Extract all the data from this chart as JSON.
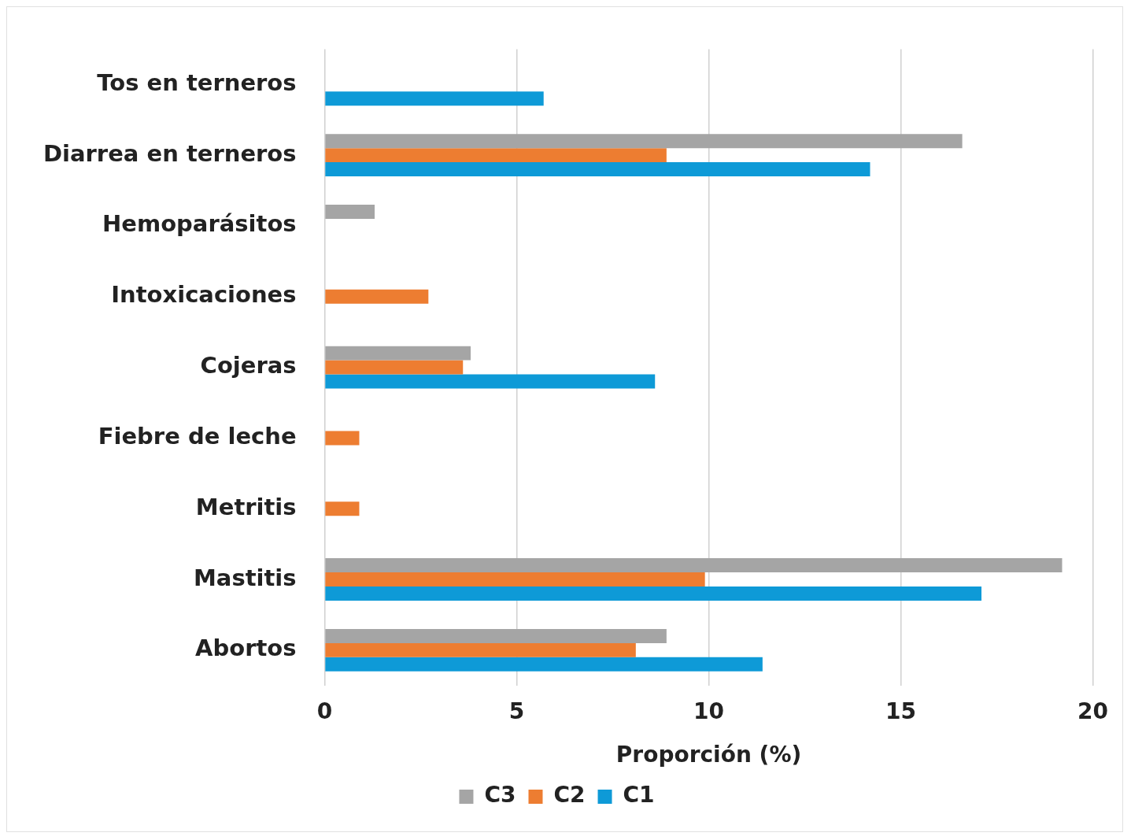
{
  "chart_data": {
    "type": "bar",
    "orientation": "horizontal",
    "xlabel": "Proporción (%)",
    "categories": [
      "Tos en terneros",
      "Diarrea en terneros",
      "Hemoparásitos",
      "Intoxicaciones",
      "Cojeras",
      "Fiebre de leche",
      "Metritis",
      "Mastitis",
      "Abortos"
    ],
    "series": [
      {
        "name": "C3",
        "color": "#a5a5a5",
        "values": [
          null,
          16.6,
          1.3,
          null,
          3.8,
          null,
          null,
          19.2,
          8.9
        ]
      },
      {
        "name": "C2",
        "color": "#ed7d31",
        "values": [
          null,
          8.9,
          null,
          2.7,
          3.6,
          0.9,
          0.9,
          9.9,
          8.1
        ]
      },
      {
        "name": "C1",
        "color": "#0e9ad7",
        "values": [
          5.7,
          14.2,
          null,
          null,
          8.6,
          null,
          null,
          17.1,
          11.4
        ]
      }
    ],
    "xlim": [
      0,
      20
    ],
    "xticks": [
      0,
      5,
      10,
      15,
      20
    ],
    "grid": "x",
    "legend": "bottom"
  }
}
